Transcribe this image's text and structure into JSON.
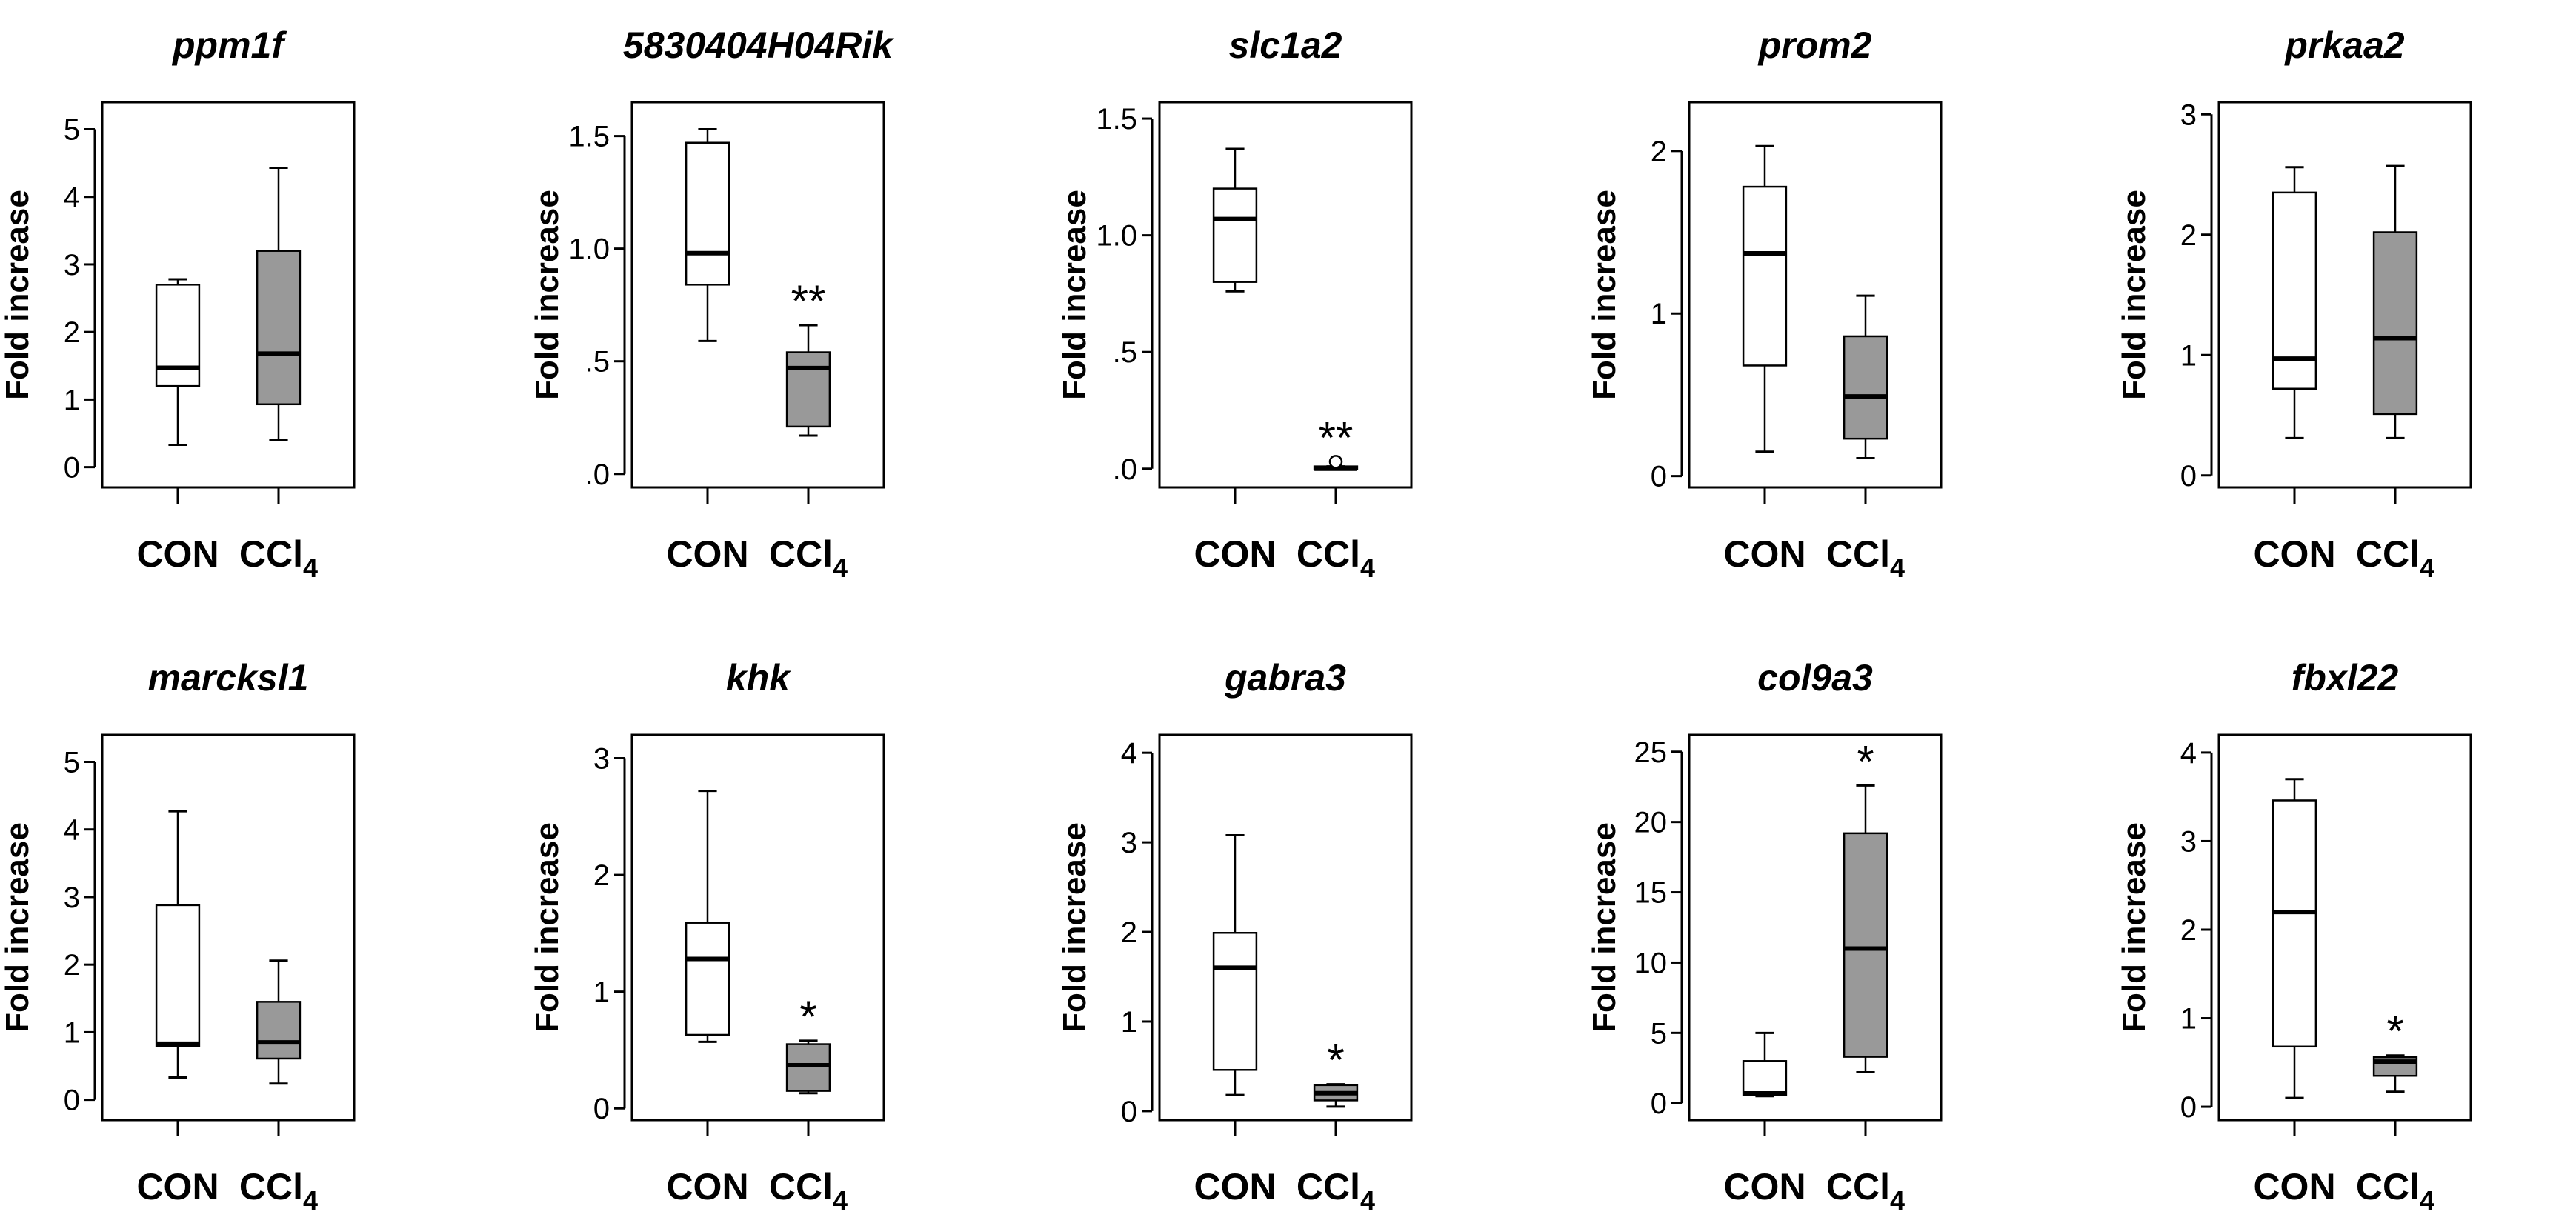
{
  "figure": {
    "background": "#ffffff",
    "box_colors": {
      "CON": "#ffffff",
      "CCl4": "#999999"
    }
  },
  "chart_data": [
    {
      "type": "box",
      "title": "ppm1f",
      "ylabel": "Fold increase",
      "ylim": [
        -0.3,
        5.4
      ],
      "yticks": [
        0,
        1,
        2,
        3,
        4,
        5
      ],
      "ytick_labels": [
        "0",
        "1",
        "2",
        "3",
        "4",
        "5"
      ],
      "categories": [
        "CON",
        "CCl4"
      ],
      "boxes": [
        {
          "name": "CON",
          "min": 0.33,
          "q1": 1.2,
          "median": 1.47,
          "q3": 2.7,
          "max": 2.78
        },
        {
          "name": "CCl4",
          "min": 0.4,
          "q1": 0.93,
          "median": 1.68,
          "q3": 3.2,
          "max": 4.43
        }
      ],
      "annotations": []
    },
    {
      "type": "box",
      "title": "5830404H04Rik",
      "ylabel": "Fold increase",
      "ylim": [
        -0.06,
        1.65
      ],
      "yticks": [
        0,
        0.5,
        1.0,
        1.5
      ],
      "ytick_labels": [
        ".0",
        ".5",
        "1.0",
        "1.5"
      ],
      "categories": [
        "CON",
        "CCl4"
      ],
      "boxes": [
        {
          "name": "CON",
          "min": 0.59,
          "q1": 0.84,
          "median": 0.98,
          "q3": 1.47,
          "max": 1.53
        },
        {
          "name": "CCl4",
          "min": 0.17,
          "q1": 0.21,
          "median": 0.47,
          "q3": 0.54,
          "max": 0.66
        }
      ],
      "annotations": [
        {
          "category": "CCl4",
          "text": "**"
        }
      ]
    },
    {
      "type": "box",
      "title": "slc1a2",
      "ylabel": "Fold increase",
      "ylim": [
        -0.08,
        1.57
      ],
      "yticks": [
        0,
        0.5,
        1.0,
        1.5
      ],
      "ytick_labels": [
        ".0",
        ".5",
        "1.0",
        "1.5"
      ],
      "categories": [
        "CON",
        "CCl4"
      ],
      "boxes": [
        {
          "name": "CON",
          "min": 0.76,
          "q1": 0.8,
          "median": 1.07,
          "q3": 1.2,
          "max": 1.37
        },
        {
          "name": "CCl4",
          "min": 0.0,
          "q1": 0.0,
          "median": 0.0,
          "q3": 0.01,
          "max": 0.01,
          "outliers": [
            0.03
          ]
        }
      ],
      "annotations": [
        {
          "category": "CCl4",
          "text": "**"
        }
      ]
    },
    {
      "type": "box",
      "title": "prom2",
      "ylabel": "Fold increase",
      "ylim": [
        -0.07,
        2.3
      ],
      "yticks": [
        0,
        1,
        2
      ],
      "ytick_labels": [
        "0",
        "1",
        "2"
      ],
      "categories": [
        "CON",
        "CCl4"
      ],
      "boxes": [
        {
          "name": "CON",
          "min": 0.15,
          "q1": 0.68,
          "median": 1.37,
          "q3": 1.78,
          "max": 2.03
        },
        {
          "name": "CCl4",
          "min": 0.11,
          "q1": 0.23,
          "median": 0.49,
          "q3": 0.86,
          "max": 1.11
        }
      ],
      "annotations": []
    },
    {
      "type": "box",
      "title": "prkaa2",
      "ylabel": "Fold increase",
      "ylim": [
        -0.1,
        3.1
      ],
      "yticks": [
        0,
        1,
        2,
        3
      ],
      "ytick_labels": [
        "0",
        "1",
        "2",
        "3"
      ],
      "categories": [
        "CON",
        "CCl4"
      ],
      "boxes": [
        {
          "name": "CON",
          "min": 0.31,
          "q1": 0.72,
          "median": 0.97,
          "q3": 2.35,
          "max": 2.56
        },
        {
          "name": "CCl4",
          "min": 0.31,
          "q1": 0.51,
          "median": 1.14,
          "q3": 2.02,
          "max": 2.57
        }
      ],
      "annotations": []
    },
    {
      "type": "box",
      "title": "marcksl1",
      "ylabel": "Fold increase",
      "ylim": [
        -0.3,
        5.4
      ],
      "yticks": [
        0,
        1,
        2,
        3,
        4,
        5
      ],
      "ytick_labels": [
        "0",
        "1",
        "2",
        "3",
        "4",
        "5"
      ],
      "categories": [
        "CON",
        "CCl4"
      ],
      "boxes": [
        {
          "name": "CON",
          "min": 0.33,
          "q1": 0.79,
          "median": 0.83,
          "q3": 2.88,
          "max": 4.27
        },
        {
          "name": "CCl4",
          "min": 0.24,
          "q1": 0.61,
          "median": 0.85,
          "q3": 1.45,
          "max": 2.06
        }
      ],
      "annotations": []
    },
    {
      "type": "box",
      "title": "khk",
      "ylabel": "Fold increase",
      "ylim": [
        -0.1,
        3.2
      ],
      "yticks": [
        0,
        1,
        2,
        3
      ],
      "ytick_labels": [
        "0",
        "1",
        "2",
        "3"
      ],
      "categories": [
        "CON",
        "CCl4"
      ],
      "boxes": [
        {
          "name": "CON",
          "min": 0.57,
          "q1": 0.63,
          "median": 1.28,
          "q3": 1.59,
          "max": 2.72
        },
        {
          "name": "CCl4",
          "min": 0.13,
          "q1": 0.15,
          "median": 0.37,
          "q3": 0.55,
          "max": 0.58
        }
      ],
      "annotations": [
        {
          "category": "CCl4",
          "text": "*"
        }
      ]
    },
    {
      "type": "box",
      "title": "gabra3",
      "ylabel": "Fold increase",
      "ylim": [
        -0.1,
        4.2
      ],
      "yticks": [
        0,
        1,
        2,
        3,
        4
      ],
      "ytick_labels": [
        "0",
        "1",
        "2",
        "3",
        "4"
      ],
      "categories": [
        "CON",
        "CCl4"
      ],
      "boxes": [
        {
          "name": "CON",
          "min": 0.18,
          "q1": 0.46,
          "median": 1.6,
          "q3": 1.99,
          "max": 3.08
        },
        {
          "name": "CCl4",
          "min": 0.05,
          "q1": 0.12,
          "median": 0.2,
          "q3": 0.29,
          "max": 0.3
        }
      ],
      "annotations": [
        {
          "category": "CCl4",
          "text": "*"
        }
      ]
    },
    {
      "type": "box",
      "title": "col9a3",
      "ylabel": "Fold increase",
      "ylim": [
        -1.2,
        26.2
      ],
      "yticks": [
        0,
        5,
        10,
        15,
        20,
        25
      ],
      "ytick_labels": [
        "0",
        "5",
        "10",
        "15",
        "20",
        "25"
      ],
      "categories": [
        "CON",
        "CCl4"
      ],
      "boxes": [
        {
          "name": "CON",
          "min": 0.5,
          "q1": 0.6,
          "median": 0.7,
          "q3": 3.0,
          "max": 5.0
        },
        {
          "name": "CCl4",
          "min": 2.2,
          "q1": 3.3,
          "median": 11.0,
          "q3": 19.2,
          "max": 22.6
        }
      ],
      "annotations": [
        {
          "category": "CCl4",
          "text": "*"
        }
      ]
    },
    {
      "type": "box",
      "title": "fbxl22",
      "ylabel": "Fold increase",
      "ylim": [
        -0.15,
        4.2
      ],
      "yticks": [
        0,
        1,
        2,
        3,
        4
      ],
      "ytick_labels": [
        "0",
        "1",
        "2",
        "3",
        "4"
      ],
      "categories": [
        "CON",
        "CCl4"
      ],
      "boxes": [
        {
          "name": "CON",
          "min": 0.1,
          "q1": 0.68,
          "median": 2.2,
          "q3": 3.46,
          "max": 3.7
        },
        {
          "name": "CCl4",
          "min": 0.17,
          "q1": 0.35,
          "median": 0.51,
          "q3": 0.56,
          "max": 0.58
        }
      ],
      "annotations": [
        {
          "category": "CCl4",
          "text": "*"
        }
      ]
    }
  ]
}
